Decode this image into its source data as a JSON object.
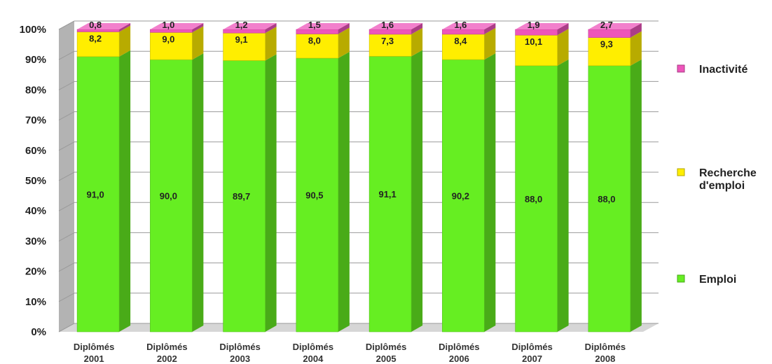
{
  "chart_data": {
    "type": "bar",
    "stacked": true,
    "percent": true,
    "categories": [
      [
        "Diplômés",
        "2001"
      ],
      [
        "Diplômés",
        "2002"
      ],
      [
        "Diplômés",
        "2003"
      ],
      [
        "Diplômés",
        "2004"
      ],
      [
        "Diplômés",
        "2005"
      ],
      [
        "Diplômés",
        "2006"
      ],
      [
        "Diplômés",
        "2007"
      ],
      [
        "Diplômés",
        "2008"
      ]
    ],
    "series": [
      {
        "name": "Emploi",
        "color": "#66ee22",
        "values": [
          "91,0",
          "90,0",
          "89,7",
          "90,5",
          "91,1",
          "90,2",
          "88,0",
          "88,0"
        ]
      },
      {
        "name": "Recherche d'emploi",
        "color": "#ffee00",
        "values": [
          "8,2",
          "9,0",
          "9,1",
          "8,0",
          "7,3",
          "8,4",
          "10,1",
          "9,3"
        ]
      },
      {
        "name": "Inactivité",
        "color": "#ee55bb",
        "values": [
          "0,8",
          "1,0",
          "1,2",
          "1,5",
          "1,6",
          "1,6",
          "1,9",
          "2,7"
        ]
      }
    ],
    "legend": [
      {
        "lines": [
          "Inactivité"
        ],
        "color": "#ee55bb"
      },
      {
        "lines": [
          "Recherche",
          "d'emploi"
        ],
        "color": "#ffee00"
      },
      {
        "lines": [
          "Emploi"
        ],
        "color": "#66ee22"
      }
    ],
    "yticks": [
      "0%",
      "10%",
      "20%",
      "30%",
      "40%",
      "50%",
      "60%",
      "70%",
      "80%",
      "90%",
      "100%"
    ],
    "ylim": [
      0,
      100
    ],
    "grid": true,
    "legend_position": "right",
    "style": "3d"
  }
}
